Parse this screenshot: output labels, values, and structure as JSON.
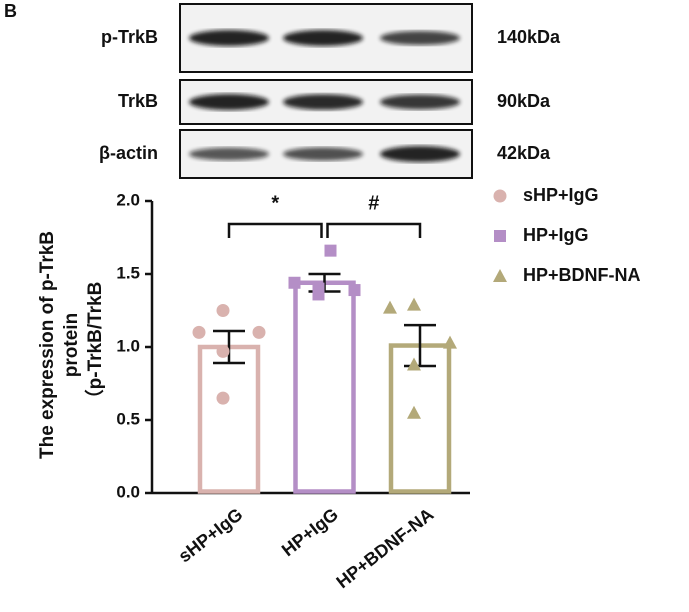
{
  "panel_label": "B",
  "blot": {
    "rows": [
      {
        "label": "p-TrkB",
        "size": "140kDa"
      },
      {
        "label": "TrkB",
        "size": "90kDa"
      },
      {
        "label": "β-actin",
        "size": "42kDa"
      }
    ]
  },
  "chart_data": {
    "type": "bar",
    "y_label": [
      "The expression of p-TrkB",
      "protein",
      "（p-TrkB/TrkB"
    ],
    "categories": [
      "sHP+IgG",
      "HP+IgG",
      "HP+BDNF-NA"
    ],
    "values": [
      1.0,
      1.44,
      1.01
    ],
    "errors": [
      0.11,
      0.06,
      0.14
    ],
    "points": [
      [
        1.25,
        1.1,
        1.1,
        0.97,
        0.65
      ],
      [
        1.66,
        1.44,
        1.39,
        1.36,
        1.4
      ],
      [
        1.29,
        1.27,
        1.03,
        0.88,
        0.55
      ]
    ],
    "colors": [
      "#d9b2ae",
      "#b48ec6",
      "#b3a979"
    ],
    "markers": [
      "circle",
      "square",
      "triangle"
    ],
    "legend": [
      "sHP+IgG",
      "HP+IgG",
      "HP+BDNF-NA"
    ],
    "annotations": [
      {
        "text": "*",
        "between": [
          0,
          1
        ]
      },
      {
        "text": "#",
        "between": [
          1,
          2
        ]
      }
    ],
    "ylim": [
      0,
      2
    ],
    "yticks": [
      {
        "value": 0,
        "label": "0.0"
      },
      {
        "value": 0.5,
        "label": "0.5"
      },
      {
        "value": 1,
        "label": "1.0"
      },
      {
        "value": 1.5,
        "label": "1.5"
      },
      {
        "value": 2,
        "label": "2.0"
      }
    ]
  }
}
